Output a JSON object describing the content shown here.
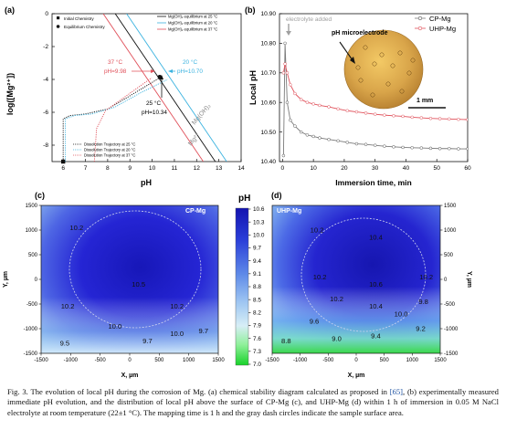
{
  "panels": {
    "a": {
      "letter": "(a)",
      "ylabel": "log([Mg²⁺])",
      "xlabel": "pH",
      "point_legend": [
        "Initial Chemistry",
        "Equilibrium Chemistry"
      ],
      "eq_legend": [
        "Mg(OH)₂ equilibrium at 25 °C",
        "Mg(OH)₂ equilibrium at 20 °C",
        "Mg(OH)₂ equilibrium at 37 °C"
      ],
      "traj_legend": [
        "Dissolution Trajectory at 25 °C",
        "Dissolution Trajectory at 20 °C",
        "Dissolution Trajectory at 37 °C"
      ],
      "ann_37": [
        "37 °C",
        "pH=9.98"
      ],
      "ann_20": [
        "20 °C",
        "pH=10.70"
      ],
      "ann_25": [
        "25 °C",
        "pH=10.34"
      ],
      "label_mgoh2": "Mg(OH)₂",
      "label_mg": "Mg²⁺",
      "colors": {
        "c25": "#111111",
        "c20": "#3bb3e0",
        "c37": "#e0505a"
      }
    },
    "b": {
      "letter": "(b)",
      "ylabel": "Local pH",
      "xlabel": "Immersion time, min",
      "note": "electrolyte added",
      "inset_title": "pH microelectrode",
      "scale_bar": "1 mm",
      "legend": [
        "CP-Mg",
        "UHP-Mg"
      ],
      "colors": {
        "cp": "#7a7a7a",
        "uhp": "#e0505a"
      }
    },
    "c": {
      "letter": "(c)",
      "tag": "CP-Mg",
      "xlabel": "X, µm",
      "ylabel": "Y, µm",
      "labels": [
        "10.2",
        "10.5",
        "10.2",
        "10.2",
        "10.0",
        "10.0",
        "9.7",
        "9.7",
        "9.5"
      ]
    },
    "d": {
      "letter": "(d)",
      "tag": "UHP-Mg",
      "xlabel": "X, µm",
      "ylabel": "Y, µm",
      "labels": [
        "10.2",
        "10.4",
        "10.2",
        "10.6",
        "10.2",
        "10.4",
        "10.2",
        "9.8",
        "10.0",
        "9.6",
        "9.4",
        "9.2",
        "9.0",
        "8.8"
      ]
    },
    "colorbar": {
      "title": "pH"
    }
  },
  "chart_data": [
    {
      "panel": "a",
      "type": "line",
      "title": "",
      "xlabel": "pH",
      "ylabel": "log([Mg²⁺])",
      "xlim": [
        5.5,
        14
      ],
      "ylim": [
        -9,
        0
      ],
      "x_ticks": [
        6,
        7,
        8,
        9,
        10,
        11,
        12,
        13,
        14
      ],
      "y_ticks": [
        0,
        -2,
        -4,
        -6,
        -8
      ],
      "equilibrium_lines": [
        {
          "name": "Mg(OH)₂ equilibrium at 25 °C",
          "points": [
            [
              8.34,
              0
            ],
            [
              12.84,
              -9
            ]
          ]
        },
        {
          "name": "Mg(OH)₂ equilibrium at 20 °C",
          "points": [
            [
              8.85,
              0
            ],
            [
              13.35,
              -9
            ]
          ]
        },
        {
          "name": "Mg(OH)₂ equilibrium at 37 °C",
          "points": [
            [
              7.8,
              0
            ],
            [
              12.3,
              -9
            ]
          ]
        }
      ],
      "trajectories": [
        {
          "name": "Dissolution Trajectory at 25 °C",
          "points": [
            [
              6,
              -9
            ],
            [
              6,
              -6.4
            ],
            [
              6.3,
              -6.2
            ],
            [
              7,
              -6.1
            ],
            [
              8,
              -5.8
            ],
            [
              9,
              -5.0
            ],
            [
              10.34,
              -3.9
            ]
          ]
        },
        {
          "name": "Dissolution Trajectory at 20 °C",
          "points": [
            [
              6.1,
              -9
            ],
            [
              6.1,
              -6.4
            ],
            [
              6.5,
              -6.2
            ],
            [
              7.3,
              -6.1
            ],
            [
              8.3,
              -5.7
            ],
            [
              9.5,
              -4.8
            ],
            [
              10.7,
              -4.0
            ]
          ]
        },
        {
          "name": "Dissolution Trajectory at 37 °C",
          "points": [
            [
              7.4,
              -9
            ],
            [
              7.5,
              -7
            ],
            [
              7.9,
              -5.9
            ],
            [
              9.98,
              -3.9
            ]
          ]
        }
      ],
      "initial_point": [
        6,
        -9
      ],
      "equilibrium_point": [
        10.34,
        -3.85
      ]
    },
    {
      "panel": "b",
      "type": "line",
      "title": "",
      "xlabel": "Immersion time, min",
      "ylabel": "Local pH",
      "xlim": [
        -1,
        60
      ],
      "ylim": [
        10.4,
        10.9
      ],
      "x_ticks": [
        0,
        10,
        20,
        30,
        40,
        50,
        60
      ],
      "y_ticks": [
        10.4,
        10.5,
        10.6,
        10.7,
        10.8,
        10.9
      ],
      "series": [
        {
          "name": "CP-Mg",
          "points": [
            [
              0.3,
              10.42
            ],
            [
              0.8,
              10.8
            ],
            [
              1.5,
              10.6
            ],
            [
              2.5,
              10.54
            ],
            [
              4,
              10.52
            ],
            [
              6,
              10.5
            ],
            [
              8,
              10.49
            ],
            [
              10,
              10.485
            ],
            [
              12,
              10.48
            ],
            [
              15,
              10.475
            ],
            [
              18,
              10.47
            ],
            [
              21,
              10.465
            ],
            [
              24,
              10.46
            ],
            [
              27,
              10.458
            ],
            [
              30,
              10.455
            ],
            [
              33,
              10.452
            ],
            [
              36,
              10.45
            ],
            [
              39,
              10.448
            ],
            [
              42,
              10.447
            ],
            [
              45,
              10.446
            ],
            [
              48,
              10.445
            ],
            [
              51,
              10.444
            ],
            [
              54,
              10.444
            ],
            [
              57,
              10.443
            ],
            [
              60,
              10.443
            ]
          ]
        },
        {
          "name": "UHP-Mg",
          "points": [
            [
              0.3,
              10.7
            ],
            [
              0.8,
              10.73
            ],
            [
              1.5,
              10.7
            ],
            [
              2.5,
              10.66
            ],
            [
              4,
              10.63
            ],
            [
              6,
              10.61
            ],
            [
              8,
              10.6
            ],
            [
              10,
              10.595
            ],
            [
              12,
              10.59
            ],
            [
              15,
              10.585
            ],
            [
              18,
              10.578
            ],
            [
              21,
              10.572
            ],
            [
              24,
              10.568
            ],
            [
              27,
              10.564
            ],
            [
              30,
              10.56
            ],
            [
              33,
              10.557
            ],
            [
              36,
              10.555
            ],
            [
              39,
              10.553
            ],
            [
              42,
              10.55
            ],
            [
              45,
              10.548
            ],
            [
              48,
              10.546
            ],
            [
              51,
              10.545
            ],
            [
              54,
              10.544
            ],
            [
              57,
              10.543
            ],
            [
              60,
              10.542
            ]
          ]
        }
      ]
    },
    {
      "panel": "c",
      "type": "heatmap",
      "title": "CP-Mg",
      "xlabel": "X, µm",
      "ylabel": "Y, µm",
      "xlim": [
        -1500,
        1500
      ],
      "ylim": [
        -1500,
        1500
      ],
      "ticks": [
        -1500,
        -1000,
        -500,
        0,
        500,
        1000,
        1500
      ],
      "contour_labels": [
        {
          "text": "10.2",
          "x": -900,
          "y": 1050
        },
        {
          "text": "10.5",
          "x": 150,
          "y": -100
        },
        {
          "text": "10.2",
          "x": -1050,
          "y": -550
        },
        {
          "text": "10.2",
          "x": 800,
          "y": -550
        },
        {
          "text": "10.0",
          "x": -250,
          "y": -950
        },
        {
          "text": "10.0",
          "x": 800,
          "y": -1100
        },
        {
          "text": "9.7",
          "x": 1250,
          "y": -1050
        },
        {
          "text": "9.7",
          "x": 300,
          "y": -1250
        },
        {
          "text": "9.5",
          "x": -1100,
          "y": -1300
        }
      ]
    },
    {
      "panel": "d",
      "type": "heatmap",
      "title": "UHP-Mg",
      "xlabel": "X, µm",
      "ylabel": "Y, µm",
      "xlim": [
        -1500,
        1500
      ],
      "ylim": [
        -1500,
        1500
      ],
      "ticks": [
        -1500,
        -1000,
        -500,
        0,
        500,
        1000,
        1500
      ],
      "contour_labels": [
        {
          "text": "10.2",
          "x": -700,
          "y": 1000
        },
        {
          "text": "10.4",
          "x": 350,
          "y": 850
        },
        {
          "text": "10.2",
          "x": -650,
          "y": 50
        },
        {
          "text": "10.6",
          "x": 350,
          "y": -100
        },
        {
          "text": "10.2",
          "x": 1250,
          "y": 50
        },
        {
          "text": "10.4",
          "x": 350,
          "y": -550
        },
        {
          "text": "10.2",
          "x": -350,
          "y": -400
        },
        {
          "text": "9.8",
          "x": 1200,
          "y": -450
        },
        {
          "text": "10.0",
          "x": 800,
          "y": -700
        },
        {
          "text": "9.6",
          "x": -750,
          "y": -850
        },
        {
          "text": "9.4",
          "x": 350,
          "y": -1150
        },
        {
          "text": "9.2",
          "x": 1150,
          "y": -1000
        },
        {
          "text": "9.0",
          "x": -350,
          "y": -1200
        },
        {
          "text": "8.8",
          "x": -1250,
          "y": -1250
        }
      ]
    },
    {
      "panel": "colorbar",
      "type": "heatmap",
      "title": "pH",
      "range": [
        7.0,
        10.6
      ],
      "ticks": [
        10.6,
        10.3,
        10.0,
        9.7,
        9.4,
        9.1,
        8.8,
        8.5,
        8.2,
        7.9,
        7.6,
        7.3,
        7.0
      ],
      "colors": {
        "high": "#1616b4",
        "mid": "#6fb0ee",
        "low": "#21d431"
      }
    }
  ],
  "caption": {
    "before_link": "Fig. 3. The evolution of local pH during the corrosion of Mg. (a) chemical stability diagram calculated as proposed in ",
    "link": "[65]",
    "after_link": ", (b) experimentally measured immediate pH evolution, and the distribution of local pH above the surface of CP-Mg (c), and UHP-Mg (d) within 1 h of immersion in 0.05 M NaCl electrolyte at room temperature (22±1 °C). The mapping time is 1 h and the gray dash circles indicate the sample surface area."
  }
}
